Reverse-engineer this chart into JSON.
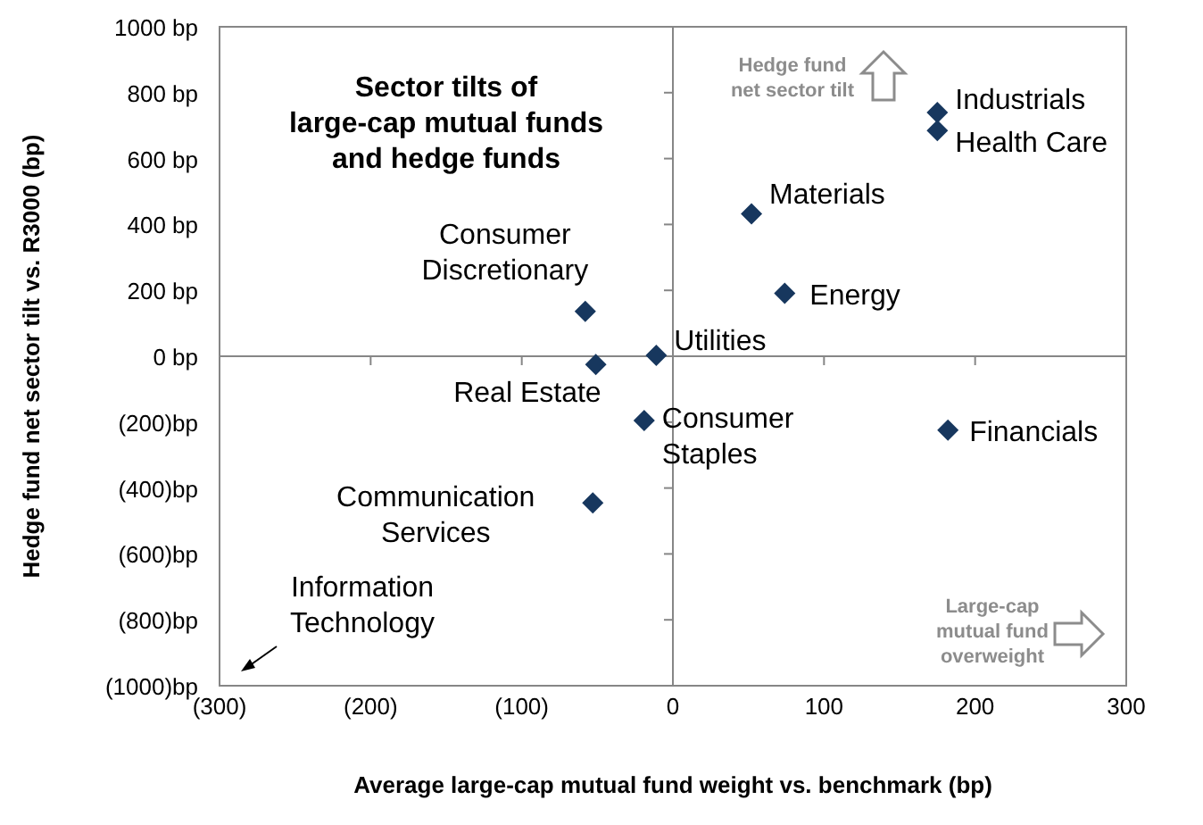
{
  "chart_data": {
    "type": "scatter",
    "title": "Sector tilts of large-cap mutual funds and hedge funds",
    "xlabel": "Average large-cap mutual fund weight vs. benchmark (bp)",
    "ylabel": "Hedge fund net sector tilt vs. R3000 (bp)",
    "x": [
      175,
      175,
      52,
      74,
      -58,
      -11,
      -51,
      -19,
      182,
      -53
    ],
    "series": [
      {
        "color": "#17375e",
        "values": [
          740,
          685,
          432,
          191,
          136,
          3,
          -25,
          -195,
          -224,
          -445
        ]
      }
    ],
    "marker": "diamond",
    "xlim": [
      -300,
      300
    ],
    "ylim": [
      -1000,
      1000
    ],
    "xticks": [
      {
        "value": -300,
        "label": "(300)"
      },
      {
        "value": -200,
        "label": "(200)"
      },
      {
        "value": -100,
        "label": "(100)"
      },
      0,
      100,
      200,
      300
    ],
    "yticks": [
      {
        "value": -1000,
        "label": "(1000)bp"
      },
      {
        "value": -800,
        "label": "(800)bp"
      },
      {
        "value": -600,
        "label": "(600)bp"
      },
      {
        "value": -400,
        "label": "(400)bp"
      },
      {
        "value": -200,
        "label": "(200)bp"
      },
      {
        "value": 0,
        "label": "0 bp"
      },
      {
        "value": 200,
        "label": "200 bp"
      },
      {
        "value": 400,
        "label": "400 bp"
      },
      {
        "value": 600,
        "label": "600 bp"
      },
      {
        "value": 800,
        "label": "800 bp"
      },
      {
        "value": 1000,
        "label": "1000 bp"
      }
    ],
    "annotations": [
      {
        "text": "Industrials",
        "x": 175,
        "y": 740
      },
      {
        "text": "Health Care",
        "x": 175,
        "y": 685
      },
      {
        "text": "Materials",
        "x": 52,
        "y": 432
      },
      {
        "text": "Energy",
        "x": 74,
        "y": 191
      },
      {
        "text": "Consumer Discretionary",
        "x": -58,
        "y": 136
      },
      {
        "text": "Utilities",
        "x": -11,
        "y": 3
      },
      {
        "text": "Real Estate",
        "x": -51,
        "y": -25
      },
      {
        "text": "Consumer Staples",
        "x": -19,
        "y": -195
      },
      {
        "text": "Financials",
        "x": 182,
        "y": -224
      },
      {
        "text": "Communication Services",
        "x": -53,
        "y": -445
      },
      "Information Technology",
      "Hedge fund net sector tilt",
      "Large-cap mutual fund overweight"
    ]
  }
}
